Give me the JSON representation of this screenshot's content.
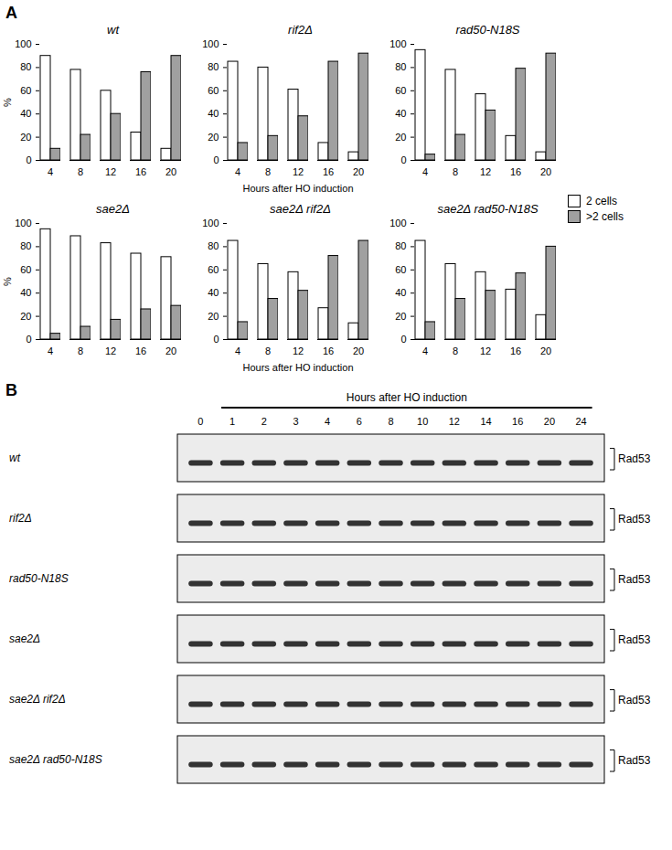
{
  "panel_labels": [
    "A",
    "B"
  ],
  "chart_data": [
    {
      "type": "bar",
      "title": "wt",
      "categories": [
        4,
        8,
        12,
        16,
        20
      ],
      "series": [
        {
          "name": "2 cells",
          "color": "#ffffff",
          "values": [
            90,
            78,
            60,
            24,
            10
          ]
        },
        {
          "name": ">2 cells",
          "color": "#a0a0a0",
          "values": [
            10,
            22,
            40,
            76,
            90
          ]
        }
      ],
      "ylim": [
        0,
        100
      ],
      "yticks": [
        0,
        20,
        40,
        60,
        80,
        100
      ],
      "ylabel": "%"
    },
    {
      "type": "bar",
      "title": "rif2Δ",
      "categories": [
        4,
        8,
        12,
        16,
        20
      ],
      "series": [
        {
          "name": "2 cells",
          "color": "#ffffff",
          "values": [
            85,
            80,
            61,
            15,
            7
          ]
        },
        {
          "name": ">2 cells",
          "color": "#a0a0a0",
          "values": [
            15,
            21,
            38,
            85,
            92
          ]
        }
      ],
      "ylim": [
        0,
        100
      ],
      "yticks": [
        0,
        20,
        40,
        60,
        80,
        100
      ],
      "xlabel": "Hours after HO induction"
    },
    {
      "type": "bar",
      "title": "rad50-N18S",
      "categories": [
        4,
        8,
        12,
        16,
        20
      ],
      "series": [
        {
          "name": "2 cells",
          "color": "#ffffff",
          "values": [
            95,
            78,
            57,
            21,
            7
          ]
        },
        {
          "name": ">2 cells",
          "color": "#a0a0a0",
          "values": [
            5,
            22,
            43,
            79,
            92
          ]
        }
      ],
      "ylim": [
        0,
        100
      ],
      "yticks": [
        0,
        20,
        40,
        60,
        80,
        100
      ],
      "legend": "right"
    },
    {
      "type": "bar",
      "title": "sae2Δ",
      "categories": [
        4,
        8,
        12,
        16,
        20
      ],
      "series": [
        {
          "name": "2 cells",
          "color": "#ffffff",
          "values": [
            95,
            89,
            83,
            74,
            71
          ]
        },
        {
          "name": ">2 cells",
          "color": "#a0a0a0",
          "values": [
            5,
            11,
            17,
            26,
            29
          ]
        }
      ],
      "ylim": [
        0,
        100
      ],
      "yticks": [
        0,
        20,
        40,
        60,
        80,
        100
      ],
      "ylabel": "%"
    },
    {
      "type": "bar",
      "title": "sae2Δ rif2Δ",
      "categories": [
        4,
        8,
        12,
        16,
        20
      ],
      "series": [
        {
          "name": "2 cells",
          "color": "#ffffff",
          "values": [
            85,
            65,
            58,
            27,
            14
          ]
        },
        {
          "name": ">2 cells",
          "color": "#a0a0a0",
          "values": [
            15,
            35,
            42,
            72,
            85
          ]
        }
      ],
      "ylim": [
        0,
        100
      ],
      "yticks": [
        0,
        20,
        40,
        60,
        80,
        100
      ],
      "xlabel": "Hours after HO induction"
    },
    {
      "type": "bar",
      "title": "sae2Δ rad50-N18S",
      "categories": [
        4,
        8,
        12,
        16,
        20
      ],
      "series": [
        {
          "name": "2 cells",
          "color": "#ffffff",
          "values": [
            85,
            65,
            58,
            43,
            21
          ]
        },
        {
          "name": ">2 cells",
          "color": "#a0a0a0",
          "values": [
            15,
            35,
            42,
            57,
            80
          ]
        }
      ],
      "ylim": [
        0,
        100
      ],
      "yticks": [
        0,
        20,
        40,
        60,
        80,
        100
      ]
    }
  ],
  "blot": {
    "header": "Hours after HO induction",
    "timepoints": [
      0,
      1,
      2,
      3,
      4,
      6,
      8,
      10,
      12,
      14,
      16,
      20,
      24
    ],
    "rows": [
      "wt",
      "rif2Δ",
      "rad50-N18S",
      "sae2Δ",
      "sae2Δ rif2Δ",
      "sae2Δ rad50-N18S"
    ],
    "band_label": "Rad53"
  }
}
